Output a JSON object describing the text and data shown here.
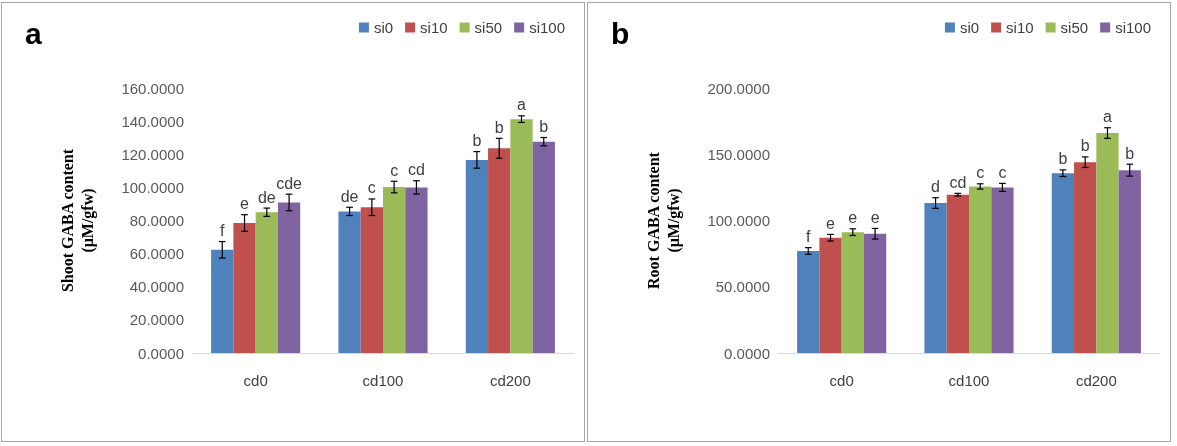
{
  "chart_data": [
    {
      "type": "bar",
      "title": "a",
      "ylabel": "Shoot GABA content\n(μM/gfw)",
      "categories": [
        "cd0",
        "cd100",
        "cd200"
      ],
      "series": [
        {
          "name": "si0",
          "color": "#4f81bd",
          "values": [
            62.3,
            85.5,
            116.6
          ],
          "errors": [
            5,
            2.5,
            5
          ],
          "value_labels": [
            "f",
            "de",
            "b"
          ]
        },
        {
          "name": "si10",
          "color": "#c0504d",
          "values": [
            78.5,
            88,
            123.6
          ],
          "errors": [
            5,
            5,
            6
          ],
          "value_labels": [
            "e",
            "c",
            "b"
          ]
        },
        {
          "name": "si50",
          "color": "#9bbb59",
          "values": [
            85,
            100.2,
            141.2
          ],
          "errors": [
            2.5,
            3.5,
            2
          ],
          "value_labels": [
            "de",
            "c",
            "a"
          ]
        },
        {
          "name": "si100",
          "color": "#8064a2",
          "values": [
            90.9,
            100,
            127.6
          ],
          "errors": [
            5,
            4,
            2.5
          ],
          "value_labels": [
            "cde",
            "cd",
            "b"
          ]
        }
      ],
      "ylim": [
        0,
        160
      ],
      "yticks": [
        {
          "value": 0,
          "label": "0.0000"
        },
        {
          "value": 20,
          "label": "20.0000"
        },
        {
          "value": 40,
          "label": "40.0000"
        },
        {
          "value": 60,
          "label": "60.0000"
        },
        {
          "value": 80,
          "label": "80.0000"
        },
        {
          "value": 100,
          "label": "100.0000"
        },
        {
          "value": 120,
          "label": "120.0000"
        },
        {
          "value": 140,
          "label": "140.0000"
        },
        {
          "value": 160,
          "label": "160.0000"
        }
      ],
      "grid": false,
      "legend": "top right"
    },
    {
      "type": "bar",
      "title": "b",
      "ylabel": "Root GABA content\n(μM/gfw)",
      "categories": [
        "cd0",
        "cd100",
        "cd200"
      ],
      "series": [
        {
          "name": "si0",
          "color": "#4f81bd",
          "values": [
            77,
            113.2,
            135.7
          ],
          "errors": [
            2.5,
            4,
            2.5
          ],
          "value_labels": [
            "f",
            "d",
            "b"
          ]
        },
        {
          "name": "si10",
          "color": "#c0504d",
          "values": [
            87,
            119.5,
            144
          ],
          "errors": [
            2.5,
            1,
            4
          ],
          "value_labels": [
            "e",
            "cd",
            "b"
          ]
        },
        {
          "name": "si50",
          "color": "#9bbb59",
          "values": [
            91.2,
            125.7,
            166
          ],
          "errors": [
            2.5,
            2,
            4
          ],
          "value_labels": [
            "e",
            "c",
            "a"
          ]
        },
        {
          "name": "si100",
          "color": "#8064a2",
          "values": [
            90,
            125,
            138
          ],
          "errors": [
            4,
            3,
            4.5
          ],
          "value_labels": [
            "e",
            "c",
            "b"
          ]
        }
      ],
      "ylim": [
        0,
        200
      ],
      "yticks": [
        {
          "value": 0,
          "label": "0.0000"
        },
        {
          "value": 50,
          "label": "50.0000"
        },
        {
          "value": 100,
          "label": "100.0000"
        },
        {
          "value": 150,
          "label": "150.0000"
        },
        {
          "value": 200,
          "label": "200.0000"
        }
      ],
      "grid": false,
      "legend": "top right"
    }
  ]
}
